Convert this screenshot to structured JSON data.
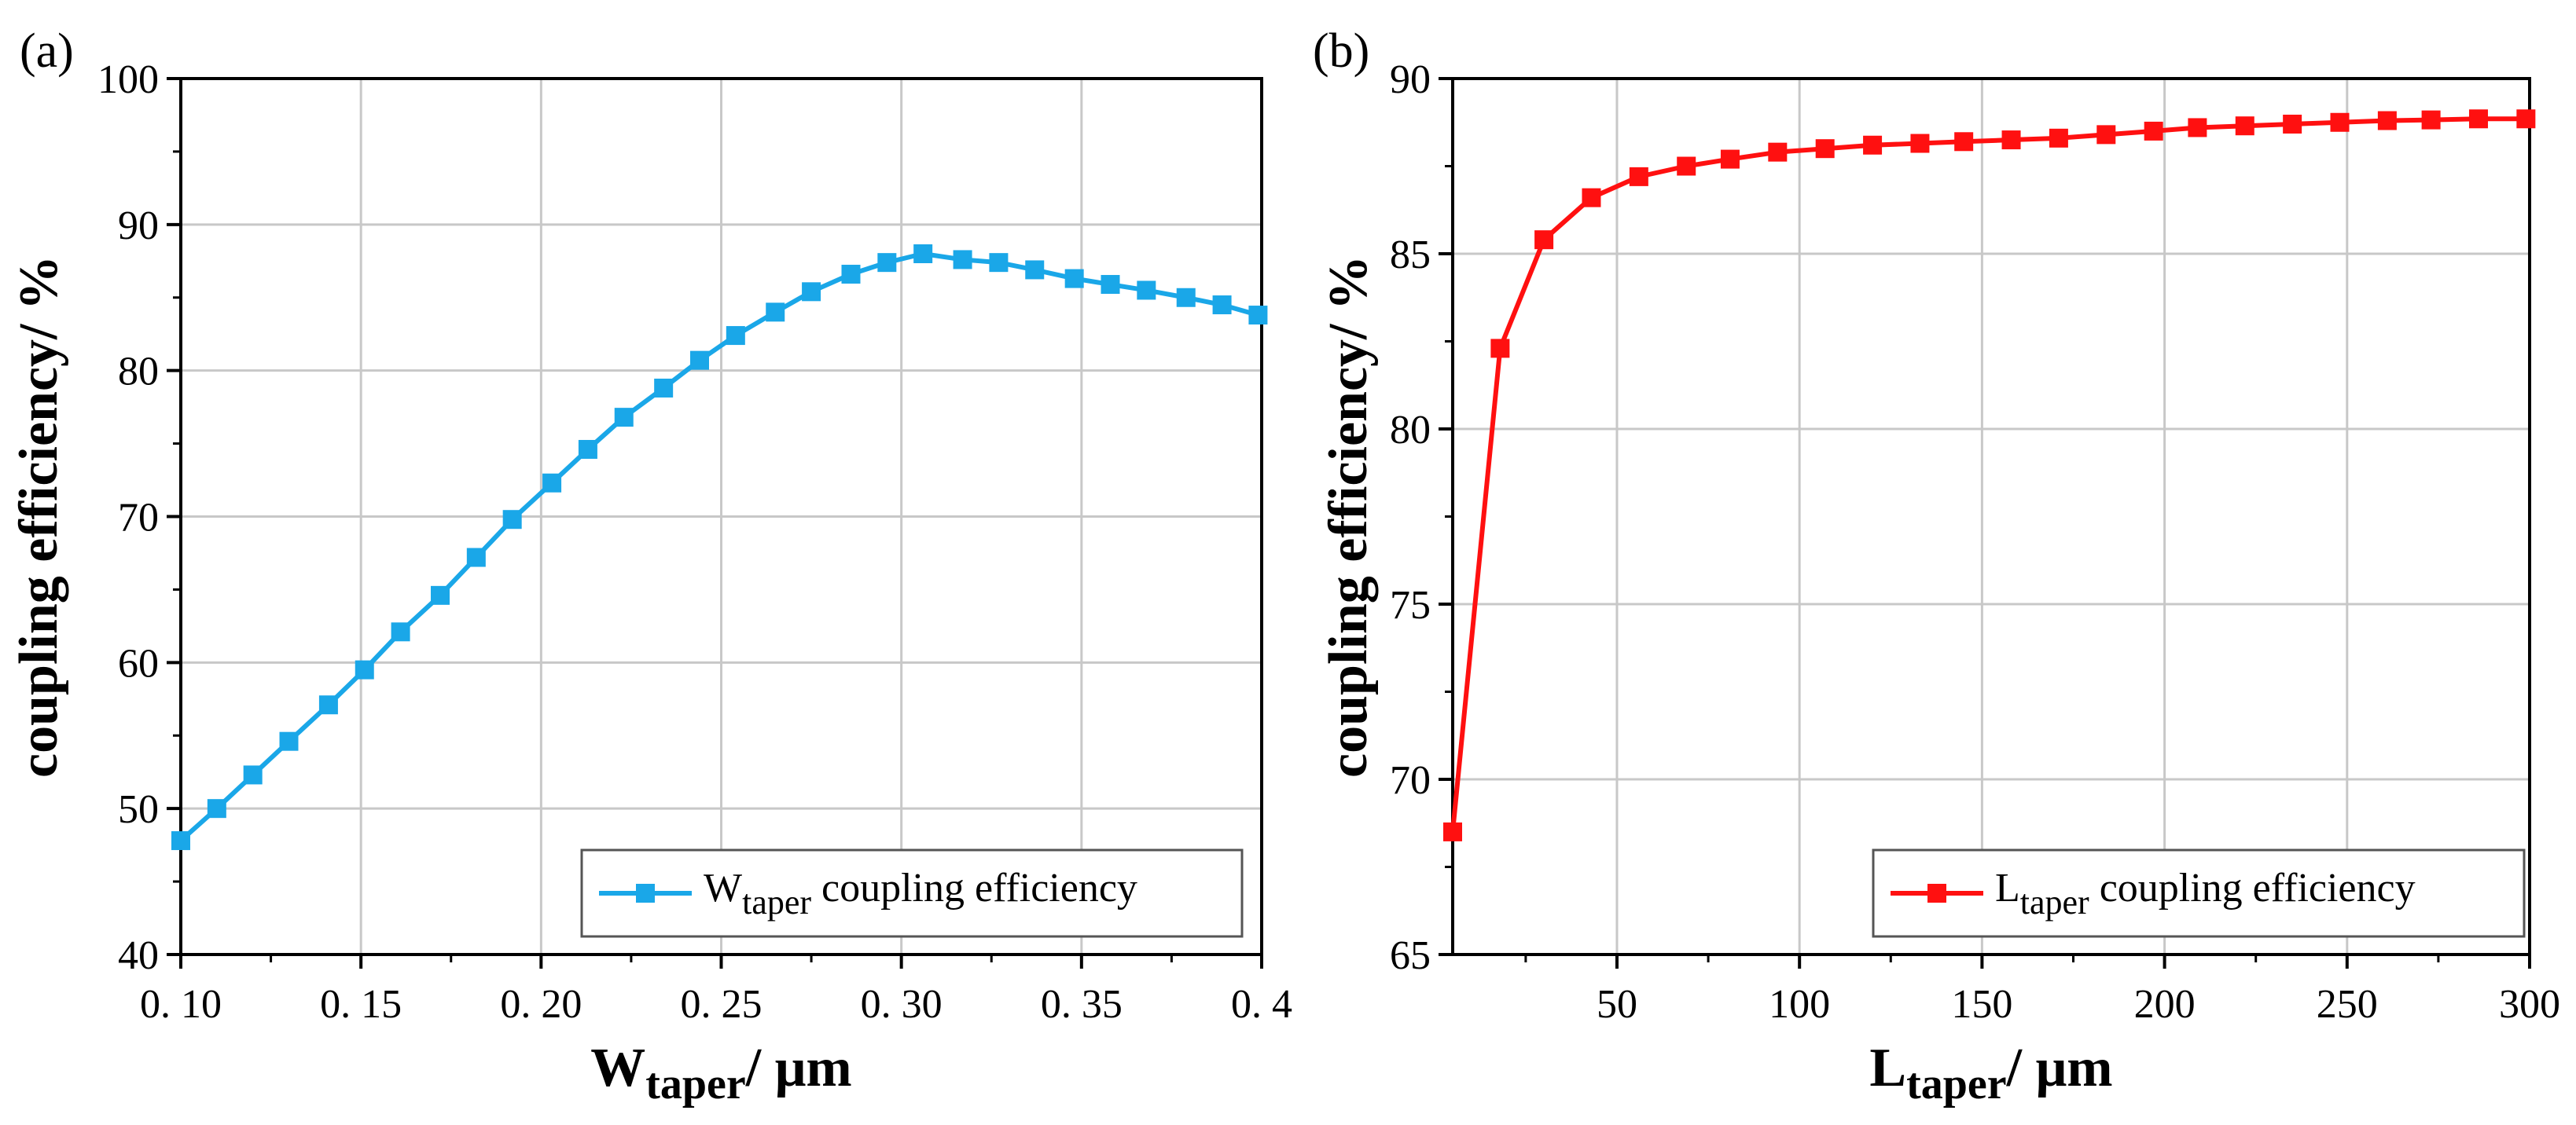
{
  "colors": {
    "series_a": "#1aa7e8",
    "series_b": "#ff1010",
    "grid": "#c8c8c8",
    "axis": "#000000"
  },
  "chart_data": [
    {
      "panel_label": "(a)",
      "type": "line",
      "marker": "square",
      "xlabel": {
        "main": "W",
        "sub": "taper",
        "rest": "/ μm"
      },
      "ylabel": "coupling efficiency/ %",
      "xlim": [
        0.1,
        0.4
      ],
      "ylim": [
        40,
        100
      ],
      "xticks": [
        0.1,
        0.15,
        0.2,
        0.25,
        0.3,
        0.35,
        0.4
      ],
      "xtick_labels": [
        "0. 10",
        "0. 15",
        "0. 20",
        "0. 25",
        "0. 30",
        "0. 35",
        "0. 4"
      ],
      "yticks": [
        40,
        50,
        60,
        70,
        80,
        90,
        100
      ],
      "ytick_labels": [
        "40",
        "50",
        "60",
        "70",
        "80",
        "90",
        "100"
      ],
      "grid": true,
      "legend": {
        "position": "bottom-right",
        "main": "W",
        "sub": "taper",
        "rest": " coupling efficiency"
      },
      "series": [
        {
          "name": "Wtaper coupling efficiency",
          "x": [
            0.1,
            0.11,
            0.12,
            0.13,
            0.141,
            0.151,
            0.161,
            0.172,
            0.182,
            0.192,
            0.203,
            0.213,
            0.223,
            0.234,
            0.244,
            0.254,
            0.265,
            0.275,
            0.286,
            0.296,
            0.306,
            0.317,
            0.327,
            0.337,
            0.348,
            0.358,
            0.368,
            0.379,
            0.389,
            0.399
          ],
          "y": [
            47.8,
            50.0,
            52.3,
            54.6,
            57.1,
            59.5,
            62.1,
            64.6,
            67.2,
            69.8,
            72.3,
            74.6,
            76.8,
            78.8,
            80.7,
            82.4,
            84.0,
            85.4,
            86.6,
            87.4,
            88.0,
            87.6,
            87.4,
            86.9,
            86.3,
            85.9,
            85.5,
            85.0,
            84.5,
            83.8
          ]
        }
      ]
    },
    {
      "panel_label": "(b)",
      "type": "line",
      "marker": "square",
      "xlabel": {
        "main": "L",
        "sub": "taper",
        "rest": "/ μm"
      },
      "ylabel": "coupling efficiency/ %",
      "xlim": [
        5,
        300
      ],
      "ylim": [
        65,
        90
      ],
      "xticks": [
        50,
        100,
        150,
        200,
        250,
        300
      ],
      "xtick_labels": [
        "50",
        "100",
        "150",
        "200",
        "250",
        "300"
      ],
      "yticks": [
        65,
        70,
        75,
        80,
        85,
        90
      ],
      "ytick_labels": [
        "65",
        "70",
        "75",
        "80",
        "85",
        "90"
      ],
      "grid": true,
      "legend": {
        "position": "bottom-right",
        "main": "L",
        "sub": "taper",
        "rest": " coupling efficiency"
      },
      "series": [
        {
          "name": "Ltaper coupling efficiency",
          "x": [
            5,
            18,
            30,
            43,
            56,
            69,
            81,
            94,
            107,
            120,
            133,
            145,
            158,
            171,
            184,
            197,
            209,
            222,
            235,
            248,
            261,
            273,
            286,
            299
          ],
          "y": [
            68.5,
            82.3,
            85.4,
            86.6,
            87.2,
            87.5,
            87.7,
            87.9,
            88.0,
            88.1,
            88.15,
            88.2,
            88.25,
            88.3,
            88.4,
            88.5,
            88.6,
            88.65,
            88.7,
            88.75,
            88.8,
            88.82,
            88.85,
            88.85
          ]
        }
      ]
    }
  ]
}
